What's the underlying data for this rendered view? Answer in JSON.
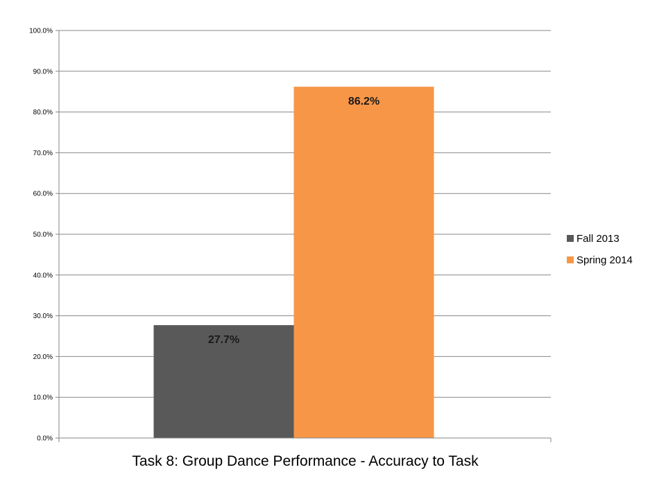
{
  "chart_data": {
    "type": "bar",
    "title": "Task 8: Group Dance Performance - Accuracy to Task",
    "categories": [
      ""
    ],
    "series": [
      {
        "name": "Fall 2013",
        "values": [
          27.7
        ],
        "color": "#595959",
        "label": "27.7%"
      },
      {
        "name": "Spring 2014",
        "values": [
          86.2
        ],
        "color": "#f79646",
        "label": "86.2%"
      }
    ],
    "ylim": [
      0,
      100
    ],
    "yticks": [
      "0.0%",
      "10.0%",
      "20.0%",
      "30.0%",
      "40.0%",
      "50.0%",
      "60.0%",
      "70.0%",
      "80.0%",
      "90.0%",
      "100.0%"
    ],
    "grid": true,
    "legend_position": "right",
    "xlabel": "",
    "ylabel": ""
  }
}
